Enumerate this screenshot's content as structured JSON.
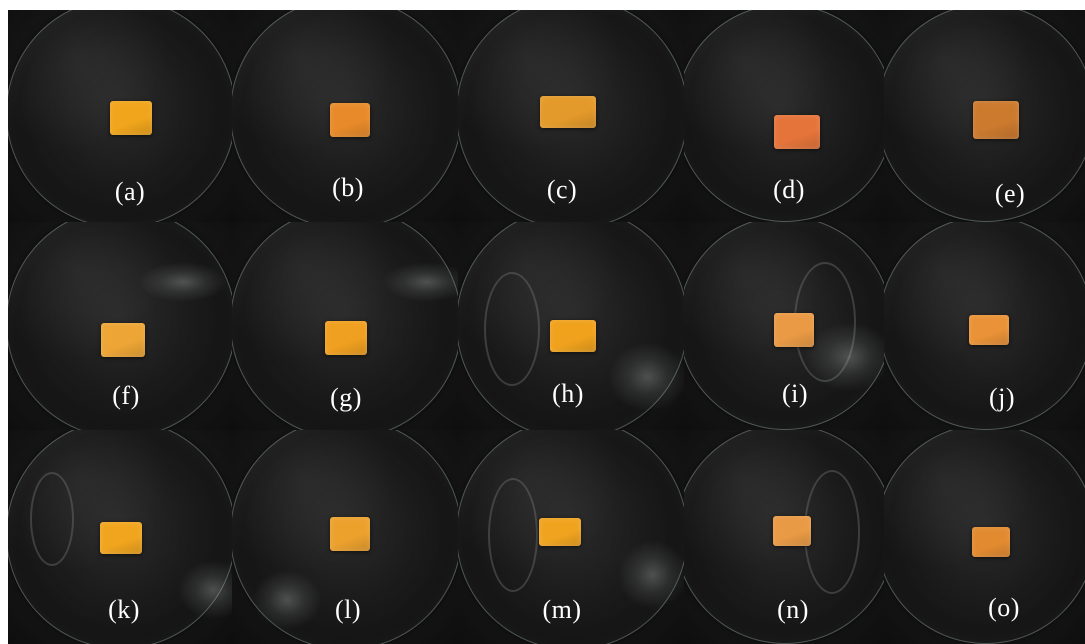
{
  "figure": {
    "panels": [
      {
        "label": "(a)",
        "sample_color": "#f0a51c"
      },
      {
        "label": "(b)",
        "sample_color": "#e88a2a"
      },
      {
        "label": "(c)",
        "sample_color": "#e49a2a"
      },
      {
        "label": "(d)",
        "sample_color": "#e5743a"
      },
      {
        "label": "(e)",
        "sample_color": "#cc7a2e"
      },
      {
        "label": "(f)",
        "sample_color": "#eda535"
      },
      {
        "label": "(g)",
        "sample_color": "#f0a020"
      },
      {
        "label": "(h)",
        "sample_color": "#f0a21c"
      },
      {
        "label": "(i)",
        "sample_color": "#ea9a44"
      },
      {
        "label": "(j)",
        "sample_color": "#ea9237"
      },
      {
        "label": "(k)",
        "sample_color": "#f1a51f"
      },
      {
        "label": "(l)",
        "sample_color": "#eca12d"
      },
      {
        "label": "(m)",
        "sample_color": "#f0a31f"
      },
      {
        "label": "(n)",
        "sample_color": "#e99a45"
      },
      {
        "label": "(o)",
        "sample_color": "#e28a30"
      }
    ]
  }
}
